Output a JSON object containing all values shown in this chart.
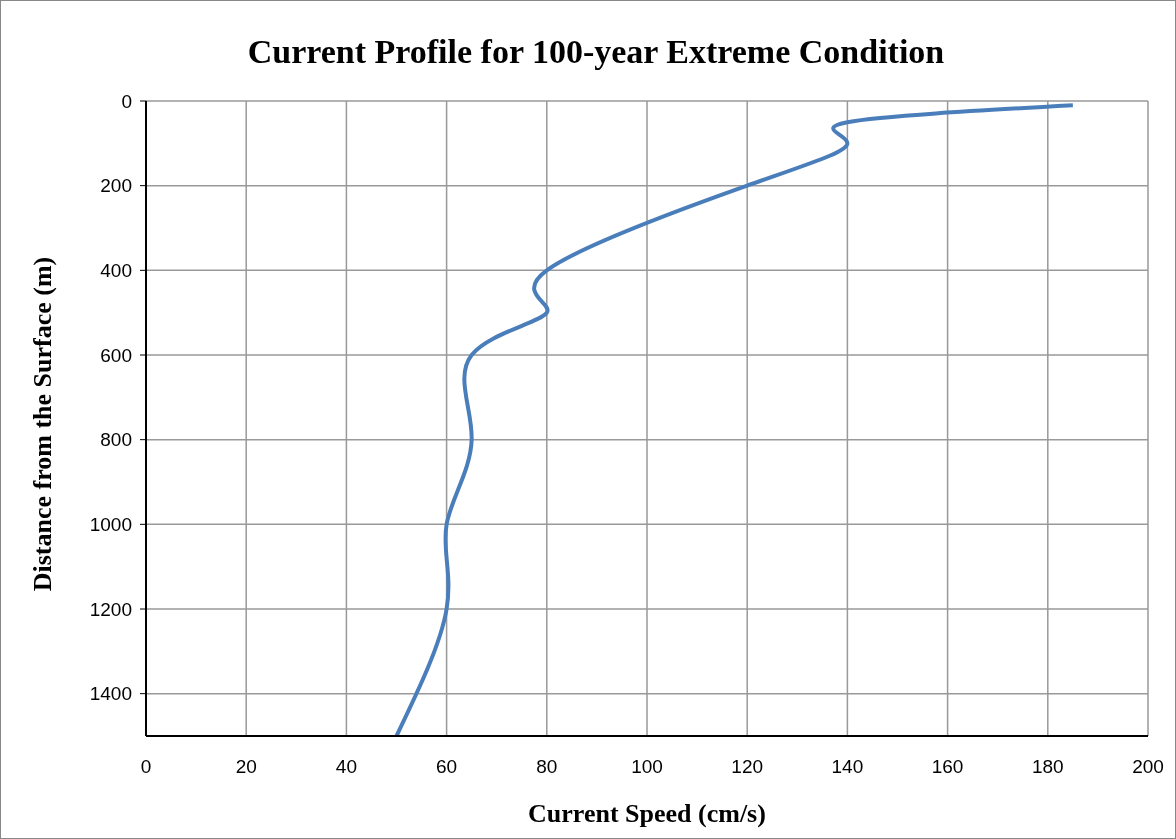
{
  "chart_data": {
    "type": "line",
    "title": "Current Profile for 100-year Extreme Condition",
    "xlabel": "Current Speed (cm/s)",
    "ylabel": "Distance from the Surface (m)",
    "series": [
      {
        "color": "#4a7ebb",
        "x": [
          185,
          140,
          140,
          120,
          80,
          80,
          65,
          65,
          60,
          60,
          50
        ],
        "values": [
          10,
          50,
          100,
          200,
          400,
          500,
          600,
          800,
          1000,
          1200,
          1500
        ]
      }
    ],
    "xlim": [
      0,
      200
    ],
    "xticks": [
      0,
      20,
      40,
      60,
      80,
      100,
      120,
      140,
      160,
      180,
      200
    ],
    "ylim": [
      1500,
      0
    ],
    "yticks": [
      0,
      200,
      400,
      600,
      800,
      1000,
      1200,
      1400
    ],
    "grid": true,
    "legend": false,
    "marker": "none",
    "line_style": "solid"
  }
}
